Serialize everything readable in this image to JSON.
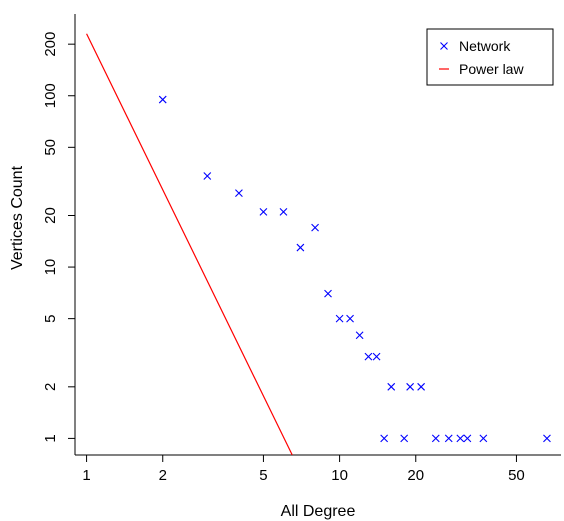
{
  "chart_data": {
    "type": "scatter",
    "xlabel": "All Degree",
    "ylabel": "Vertices Count",
    "x_scale": "log",
    "y_scale": "log",
    "xlim": [
      0.9,
      75
    ],
    "ylim": [
      0.8,
      300
    ],
    "x_ticks": [
      1,
      2,
      5,
      10,
      20,
      50
    ],
    "y_ticks": [
      1,
      2,
      5,
      10,
      20,
      50,
      100,
      200
    ],
    "legend_position": "top-right",
    "series": [
      {
        "name": "Network",
        "kind": "points",
        "marker": "x",
        "color": "#0000ff",
        "points": [
          [
            2,
            95
          ],
          [
            3,
            34
          ],
          [
            4,
            27
          ],
          [
            5,
            21
          ],
          [
            6,
            21
          ],
          [
            7,
            13
          ],
          [
            8,
            17
          ],
          [
            9,
            7
          ],
          [
            10,
            5
          ],
          [
            11,
            5
          ],
          [
            12,
            4
          ],
          [
            13,
            3
          ],
          [
            14,
            3
          ],
          [
            15,
            1
          ],
          [
            16,
            2
          ],
          [
            18,
            1
          ],
          [
            19,
            2
          ],
          [
            21,
            2
          ],
          [
            24,
            1
          ],
          [
            27,
            1
          ],
          [
            30,
            1
          ],
          [
            32,
            1
          ],
          [
            37,
            1
          ],
          [
            66,
            1
          ]
        ]
      },
      {
        "name": "Power law",
        "kind": "line",
        "color": "#ff0000",
        "points": [
          [
            1,
            230
          ],
          [
            6.5,
            0.8
          ]
        ]
      }
    ]
  }
}
